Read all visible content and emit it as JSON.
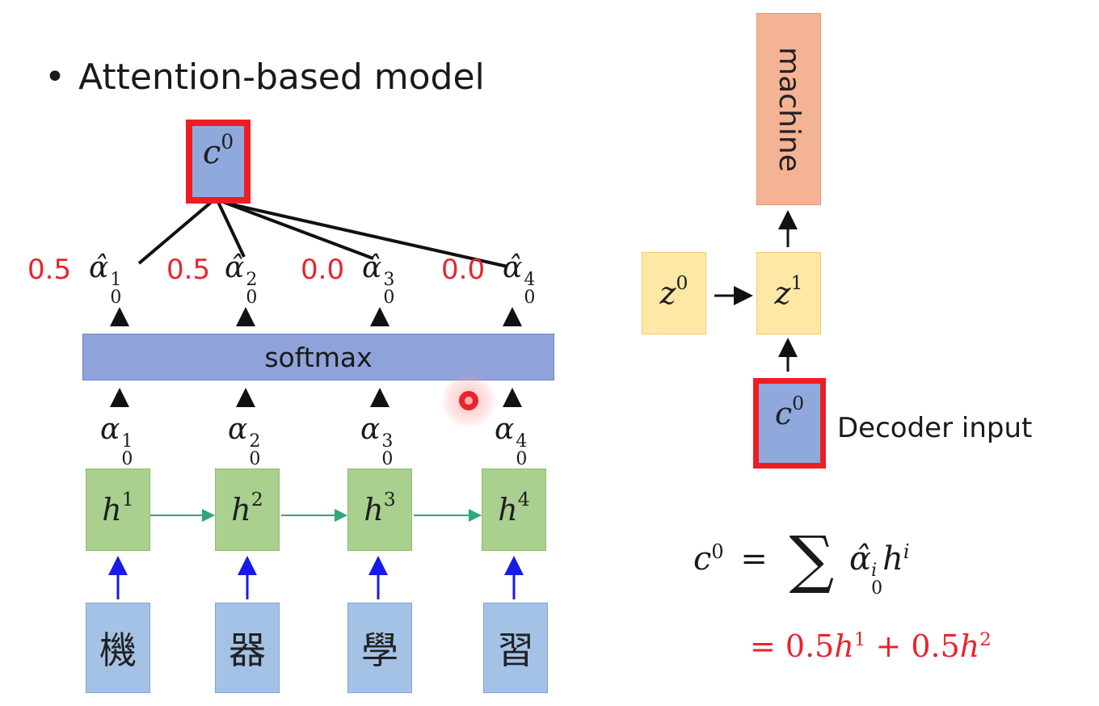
{
  "title": {
    "bullet": "•",
    "text": "Attention-based model"
  },
  "context_vector": {
    "symbol": "c",
    "superscript": "0"
  },
  "softmax": {
    "label": "softmax"
  },
  "normalized_weights": [
    {
      "value": "0.5",
      "symbol": "α̂",
      "sup": "1",
      "sub": "0"
    },
    {
      "value": "0.5",
      "symbol": "α̂",
      "sup": "2",
      "sub": "0"
    },
    {
      "value": "0.0",
      "symbol": "α̂",
      "sup": "3",
      "sub": "0"
    },
    {
      "value": "0.0",
      "symbol": "α̂",
      "sup": "4",
      "sub": "0"
    }
  ],
  "raw_weights": [
    {
      "symbol": "α",
      "sup": "1",
      "sub": "0"
    },
    {
      "symbol": "α",
      "sup": "2",
      "sub": "0"
    },
    {
      "symbol": "α",
      "sup": "3",
      "sub": "0"
    },
    {
      "symbol": "α",
      "sup": "4",
      "sub": "0"
    }
  ],
  "hidden_states": [
    {
      "symbol": "h",
      "sup": "1"
    },
    {
      "symbol": "h",
      "sup": "2"
    },
    {
      "symbol": "h",
      "sup": "3"
    },
    {
      "symbol": "h",
      "sup": "4"
    }
  ],
  "inputs": [
    "機",
    "器",
    "學",
    "習"
  ],
  "decoder": {
    "output": "machine",
    "z0": {
      "symbol": "z",
      "sup": "0"
    },
    "z1": {
      "symbol": "z",
      "sup": "1"
    },
    "input": {
      "symbol": "c",
      "sup": "0"
    },
    "input_label": "Decoder input"
  },
  "equation": {
    "lhs": "c",
    "lhs_sup": "0",
    "equals": "=",
    "sigma": "∑",
    "term_symbol": "α̂",
    "term_sup": "i",
    "term_sub": "0",
    "term_h": "h",
    "term_h_sup": "i",
    "result": {
      "prefix": "= 0.5",
      "h1": "h",
      "h1_sup": "1",
      "plus": " + 0.5",
      "h2": "h",
      "h2_sup": "2"
    }
  },
  "colors": {
    "red": "#e8242d",
    "blue_box": "#8fa9dc",
    "green_box": "#a9d08e",
    "orange_box": "#f4b394",
    "yellow_box": "#ffe7a6",
    "input_box": "#a4c2e6",
    "blue_arrow": "#1a1ae6",
    "green_arrow": "#2fa877"
  }
}
